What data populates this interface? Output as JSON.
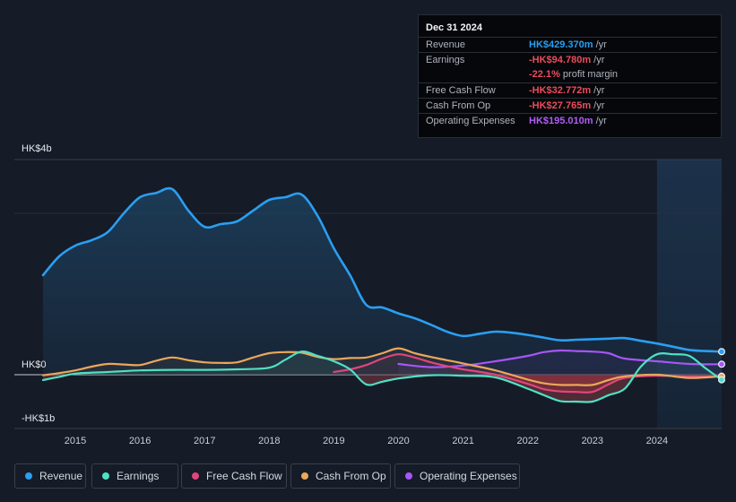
{
  "tooltip": {
    "date": "Dec 31 2024",
    "rows": [
      {
        "label": "Revenue",
        "value": "HK$429.370m",
        "unit": " /yr"
      },
      {
        "label": "Earnings",
        "value": "-HK$94.780m",
        "unit": " /yr"
      },
      {
        "label": "",
        "value": "-22.1%",
        "unit": " profit margin"
      },
      {
        "label": "Free Cash Flow",
        "value": "-HK$32.772m",
        "unit": " /yr"
      },
      {
        "label": "Cash From Op",
        "value": "-HK$27.765m",
        "unit": " /yr"
      },
      {
        "label": "Operating Expenses",
        "value": "HK$195.010m",
        "unit": " /yr"
      }
    ]
  },
  "colors": {
    "revenue": "#2b9ef0",
    "earnings": "#4fe0c4",
    "free_cash_flow": "#e0457b",
    "cash_from_op": "#eba75a",
    "operating_expenses": "#a855f7",
    "background": "#151b27",
    "negative": "#ef4b5a"
  },
  "legend": [
    {
      "label": "Revenue",
      "color": "#2b9ef0"
    },
    {
      "label": "Earnings",
      "color": "#4fe0c4"
    },
    {
      "label": "Free Cash Flow",
      "color": "#e0457b"
    },
    {
      "label": "Cash From Op",
      "color": "#eba75a"
    },
    {
      "label": "Operating Expenses",
      "color": "#a855f7"
    }
  ],
  "chart_data": {
    "type": "area",
    "title": "",
    "xlabel": "",
    "ylabel": "",
    "y_unit": "HK$ millions",
    "ylim": [
      -1000,
      4000
    ],
    "y_tick_labels": [
      {
        "value": 4000,
        "label": "HK$4b"
      },
      {
        "value": 0,
        "label": "HK$0"
      },
      {
        "value": -1000,
        "label": "-HK$1b"
      }
    ],
    "xlim": [
      2014.5,
      2025.0
    ],
    "x_ticks": [
      2015,
      2016,
      2017,
      2018,
      2019,
      2020,
      2021,
      2022,
      2023,
      2024
    ],
    "x_tick_labels": [
      "2015",
      "2016",
      "2017",
      "2018",
      "2019",
      "2020",
      "2021",
      "2022",
      "2023",
      "2024"
    ],
    "highlight_range": [
      2024.0,
      2025.0
    ],
    "grid": true,
    "series": [
      {
        "name": "Revenue",
        "fill": true,
        "x": [
          2014.5,
          2014.75,
          2015.0,
          2015.25,
          2015.5,
          2015.75,
          2016.0,
          2016.25,
          2016.5,
          2016.75,
          2017.0,
          2017.25,
          2017.5,
          2017.75,
          2018.0,
          2018.25,
          2018.5,
          2018.75,
          2019.0,
          2019.25,
          2019.5,
          2019.75,
          2020.0,
          2020.25,
          2020.5,
          2020.75,
          2021.0,
          2021.25,
          2021.5,
          2021.75,
          2022.0,
          2022.25,
          2022.5,
          2022.75,
          2023.0,
          2023.25,
          2023.5,
          2023.75,
          2024.0,
          2024.25,
          2024.5,
          2024.75,
          2025.0
        ],
        "values": [
          1850,
          2200,
          2400,
          2500,
          2650,
          3000,
          3300,
          3380,
          3450,
          3050,
          2750,
          2800,
          2850,
          3050,
          3250,
          3300,
          3350,
          2950,
          2350,
          1850,
          1300,
          1250,
          1140,
          1050,
          930,
          800,
          720,
          760,
          800,
          780,
          740,
          690,
          640,
          650,
          660,
          670,
          680,
          630,
          580,
          520,
          460,
          440,
          429
        ]
      },
      {
        "name": "Earnings",
        "x": [
          2014.5,
          2014.75,
          2015.0,
          2015.5,
          2016.0,
          2016.5,
          2017.0,
          2017.5,
          2018.0,
          2018.25,
          2018.5,
          2018.75,
          2019.0,
          2019.25,
          2019.5,
          2019.75,
          2020.0,
          2020.5,
          2021.0,
          2021.5,
          2022.0,
          2022.25,
          2022.5,
          2022.75,
          2023.0,
          2023.25,
          2023.5,
          2023.75,
          2024.0,
          2024.25,
          2024.5,
          2024.75,
          2025.0
        ],
        "values": [
          -100,
          -40,
          20,
          50,
          80,
          90,
          90,
          100,
          130,
          280,
          430,
          350,
          250,
          100,
          -180,
          -130,
          -70,
          -10,
          -20,
          -50,
          -260,
          -380,
          -490,
          -500,
          -500,
          -380,
          -260,
          150,
          380,
          380,
          350,
          120,
          -95
        ]
      },
      {
        "name": "Free Cash Flow",
        "x": [
          2019.0,
          2019.25,
          2019.5,
          2019.75,
          2020.0,
          2020.25,
          2020.5,
          2020.75,
          2021.0,
          2021.5,
          2022.0,
          2022.25,
          2022.5,
          2022.75,
          2023.0,
          2023.25,
          2023.5,
          2024.0,
          2024.5,
          2025.0
        ],
        "values": [
          50,
          100,
          180,
          300,
          380,
          320,
          230,
          160,
          100,
          0,
          -170,
          -270,
          -310,
          -320,
          -320,
          -180,
          -60,
          -20,
          -35,
          -33
        ]
      },
      {
        "name": "Cash From Op",
        "x": [
          2014.5,
          2014.75,
          2015.0,
          2015.25,
          2015.5,
          2015.75,
          2016.0,
          2016.25,
          2016.5,
          2016.75,
          2017.0,
          2017.25,
          2017.5,
          2017.75,
          2018.0,
          2018.25,
          2018.5,
          2018.75,
          2019.0,
          2019.25,
          2019.5,
          2019.75,
          2020.0,
          2020.25,
          2020.5,
          2020.75,
          2021.0,
          2021.5,
          2022.0,
          2022.25,
          2022.5,
          2022.75,
          2023.0,
          2023.25,
          2023.5,
          2024.0,
          2024.5,
          2025.0
        ],
        "values": [
          -10,
          30,
          80,
          150,
          200,
          190,
          180,
          260,
          320,
          270,
          230,
          220,
          230,
          320,
          400,
          420,
          410,
          330,
          290,
          310,
          320,
          400,
          490,
          400,
          330,
          270,
          210,
          80,
          -90,
          -160,
          -190,
          -190,
          -190,
          -100,
          -30,
          0,
          -60,
          -28
        ]
      },
      {
        "name": "Operating Expenses",
        "x": [
          2020.0,
          2020.5,
          2021.0,
          2021.5,
          2022.0,
          2022.25,
          2022.5,
          2022.75,
          2023.0,
          2023.25,
          2023.5,
          2024.0,
          2024.5,
          2025.0
        ],
        "values": [
          200,
          140,
          170,
          250,
          350,
          420,
          450,
          440,
          430,
          400,
          300,
          250,
          200,
          195
        ]
      }
    ]
  }
}
